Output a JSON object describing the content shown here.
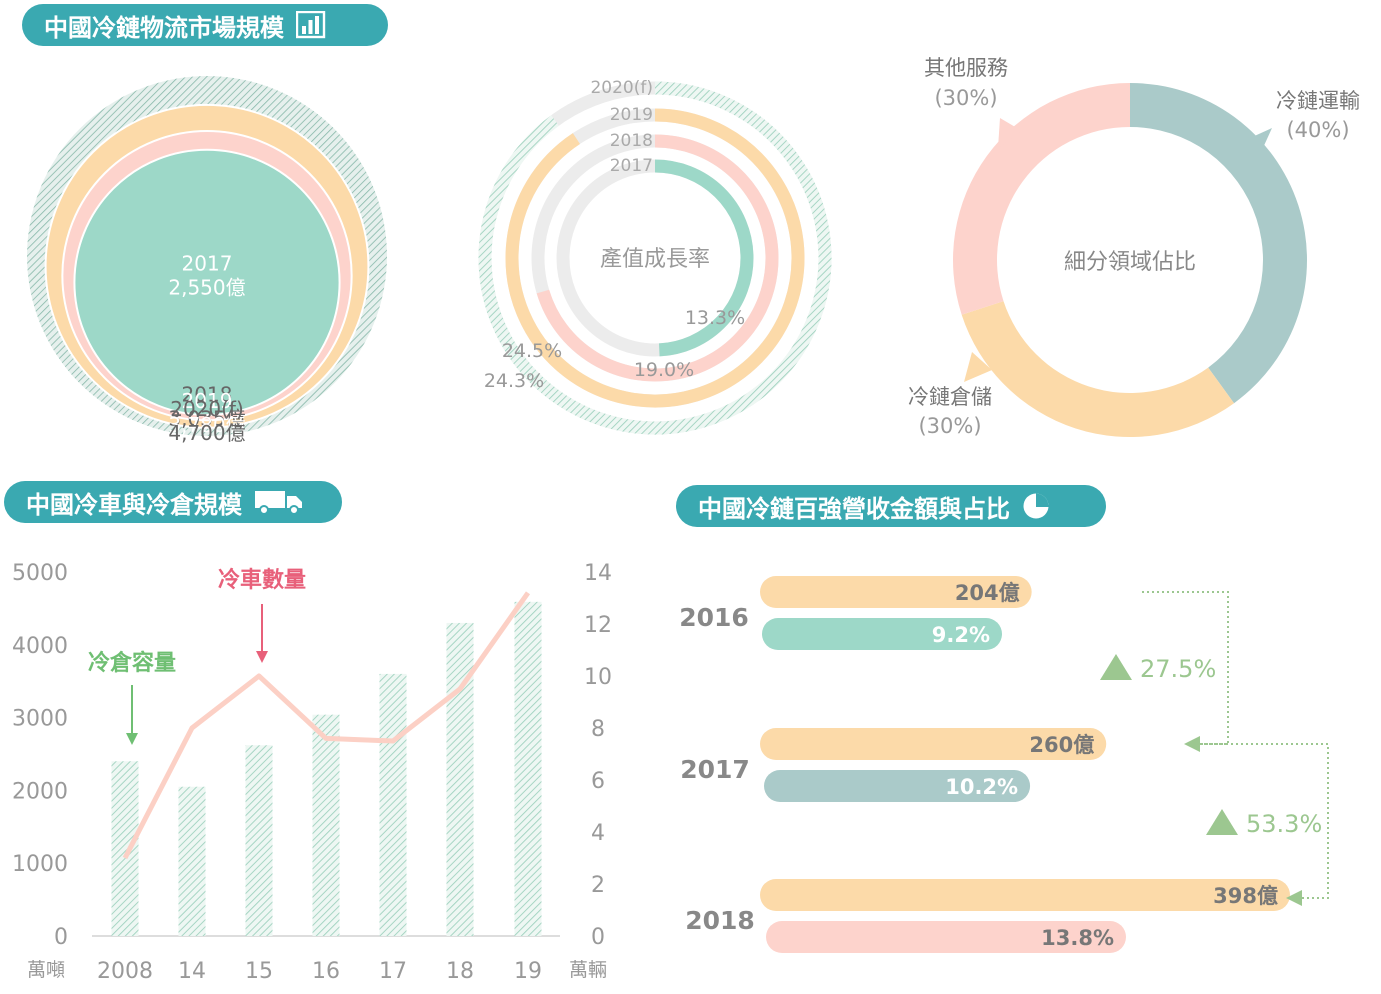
{
  "sections": {
    "market_title": "中國冷鏈物流市場規模",
    "vehicle_title": "中國冷車與冷倉規模",
    "top100_title": "中國冷鏈百強營收金額與占比"
  },
  "colors": {
    "teal": "#3aa9b1",
    "mint": "#9dd8c8",
    "pink": "#fdd3cc",
    "orange": "#fcdaa9",
    "gray": "#e8e8e8",
    "slate": "#aacac9",
    "green_arrow": "#6fbf73",
    "red_arrow": "#e8607a"
  },
  "chart_data": [
    {
      "type": "nested-circles",
      "items": [
        {
          "year": "2017",
          "value": "2,550億",
          "amount": 2550,
          "color": "mint"
        },
        {
          "year": "2018",
          "value": "3,035億",
          "amount": 3035,
          "color": "pink"
        },
        {
          "year": "2019",
          "value": "3,780億",
          "amount": 3780,
          "color": "orange"
        },
        {
          "year": "2020(f)",
          "value": "4,700億",
          "amount": 4700,
          "color": "hatched"
        }
      ]
    },
    {
      "type": "radial-bar",
      "center_label": "產值成長率",
      "rings": [
        {
          "year": "2017",
          "value": 13.3,
          "label": "13.3%"
        },
        {
          "year": "2018",
          "value": 19.0,
          "label": "19.0%"
        },
        {
          "year": "2019",
          "value": 24.5,
          "label": "24.5%"
        },
        {
          "year": "2020(f)",
          "value": 24.3,
          "label": "24.3%"
        }
      ]
    },
    {
      "type": "pie",
      "center_label": "細分領域佔比",
      "slices": [
        {
          "name": "冷鏈運輸",
          "pct_label": "(40%)",
          "value": 40,
          "color": "slate"
        },
        {
          "name": "冷鏈倉儲",
          "pct_label": "(30%)",
          "value": 30,
          "color": "orange"
        },
        {
          "name": "其他服務",
          "pct_label": "(30%)",
          "value": 30,
          "color": "pink"
        }
      ]
    },
    {
      "type": "bar+line",
      "categories": [
        "2008",
        "14",
        "15",
        "16",
        "17",
        "18",
        "19"
      ],
      "bar_series": {
        "name": "冷倉容量",
        "values": [
          2400,
          2050,
          2620,
          3040,
          3600,
          4300,
          4590
        ]
      },
      "line_series": {
        "name": "冷車數量",
        "values": [
          3.0,
          8.0,
          10.0,
          7.6,
          7.5,
          9.5,
          13.2
        ]
      },
      "y_left": {
        "ticks": [
          "0",
          "1000",
          "2000",
          "3000",
          "4000",
          "5000"
        ],
        "unit": "萬噸",
        "range": [
          0,
          5000
        ]
      },
      "y_right": {
        "ticks": [
          "0",
          "2",
          "4",
          "6",
          "8",
          "10",
          "12",
          "14"
        ],
        "unit": "萬輛",
        "range": [
          0,
          14
        ]
      }
    },
    {
      "type": "bar",
      "groups": [
        {
          "year": "2016",
          "revenue": 204,
          "revenue_label": "204億",
          "share": 9.2,
          "share_label": "9.2%",
          "share_color": "mint"
        },
        {
          "year": "2017",
          "revenue": 260,
          "revenue_label": "260億",
          "share": 10.2,
          "share_label": "10.2%",
          "share_color": "slate"
        },
        {
          "year": "2018",
          "revenue": 398,
          "revenue_label": "398億",
          "share": 13.8,
          "share_label": "13.8%",
          "share_color": "pink"
        }
      ],
      "growth": [
        {
          "label": "27.5%"
        },
        {
          "label": "53.3%"
        }
      ]
    }
  ]
}
